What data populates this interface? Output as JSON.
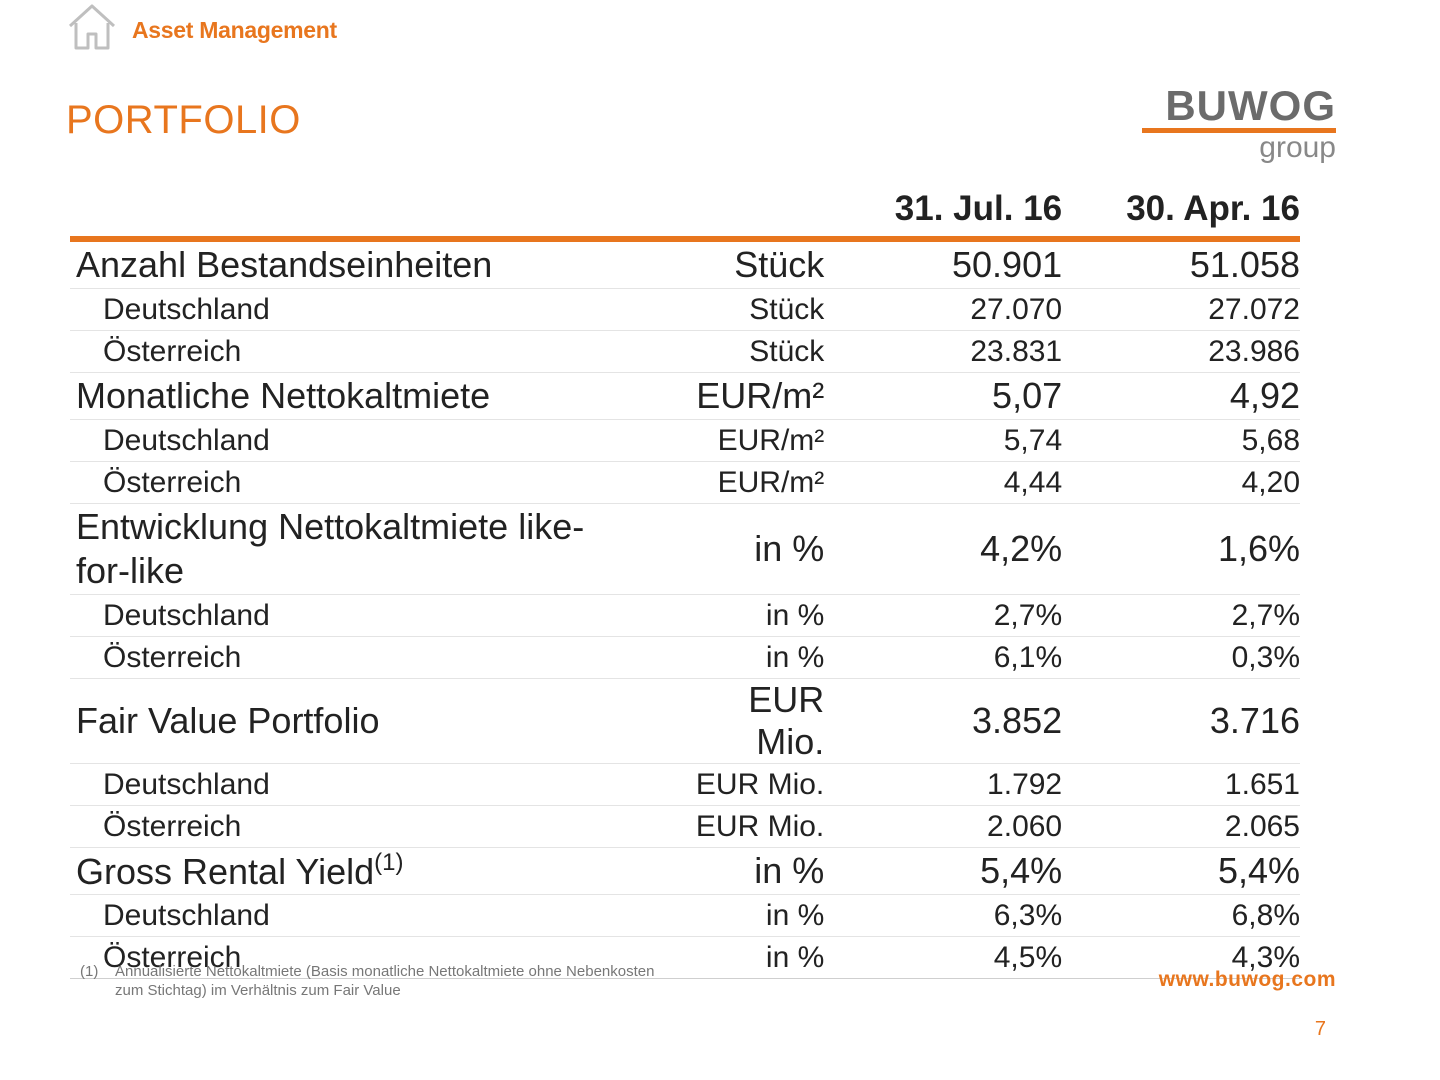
{
  "header": {
    "section": "Asset Management",
    "icon": "home-icon"
  },
  "title": "PORTFOLIO",
  "logo": {
    "main": "BUWOG",
    "sub": "group",
    "colors": {
      "text": "#6b6b6b",
      "bar": "#e8761e"
    }
  },
  "colors": {
    "accent": "#e8761e",
    "text": "#222222"
  },
  "table": {
    "columns": [
      "",
      "",
      "31. Jul. 16",
      "30. Apr. 16"
    ],
    "rows": [
      {
        "level": "main",
        "label": "Anzahl Bestandseinheiten",
        "unit": "Stück",
        "jul16": "50.901",
        "apr16": "51.058"
      },
      {
        "level": "sub",
        "label": "Deutschland",
        "unit": "Stück",
        "jul16": "27.070",
        "apr16": "27.072"
      },
      {
        "level": "sub",
        "label": "Österreich",
        "unit": "Stück",
        "jul16": "23.831",
        "apr16": "23.986"
      },
      {
        "level": "main",
        "label": "Monatliche Nettokaltmiete",
        "unit": "EUR/m²",
        "jul16": "5,07",
        "apr16": "4,92"
      },
      {
        "level": "sub",
        "label": "Deutschland",
        "unit": "EUR/m²",
        "jul16": "5,74",
        "apr16": "5,68"
      },
      {
        "level": "sub",
        "label": "Österreich",
        "unit": "EUR/m²",
        "jul16": "4,44",
        "apr16": "4,20"
      },
      {
        "level": "main",
        "label": "Entwicklung Nettokaltmiete like-for-like",
        "unit": "in %",
        "jul16": "4,2%",
        "apr16": "1,6%"
      },
      {
        "level": "sub",
        "label": "Deutschland",
        "unit": "in %",
        "jul16": "2,7%",
        "apr16": "2,7%"
      },
      {
        "level": "sub",
        "label": "Österreich",
        "unit": "in %",
        "jul16": "6,1%",
        "apr16": "0,3%"
      },
      {
        "level": "main",
        "label": "Fair Value Portfolio",
        "unit": "EUR Mio.",
        "jul16": "3.852",
        "apr16": "3.716"
      },
      {
        "level": "sub",
        "label": "Deutschland",
        "unit": "EUR Mio.",
        "jul16": "1.792",
        "apr16": "1.651"
      },
      {
        "level": "sub",
        "label": "Österreich",
        "unit": "EUR Mio.",
        "jul16": "2.060",
        "apr16": "2.065"
      },
      {
        "level": "main",
        "label": "Gross Rental Yield",
        "label_sup": "(1)",
        "unit": "in %",
        "jul16": "5,4%",
        "apr16": "5,4%"
      },
      {
        "level": "sub",
        "label": "Deutschland",
        "unit": "in %",
        "jul16": "6,3%",
        "apr16": "6,8%"
      },
      {
        "level": "sub",
        "label": "Österreich",
        "unit": "in %",
        "jul16": "4,5%",
        "apr16": "4,3%"
      }
    ]
  },
  "footnote": {
    "marker": "(1)",
    "line1": "Annualisierte Nettokaltmiete (Basis monatliche Nettokaltmiete ohne Nebenkosten",
    "line2": "zum Stichtag) im Verhältnis zum Fair Value"
  },
  "website": "www.buwog.com",
  "page_number": "7"
}
